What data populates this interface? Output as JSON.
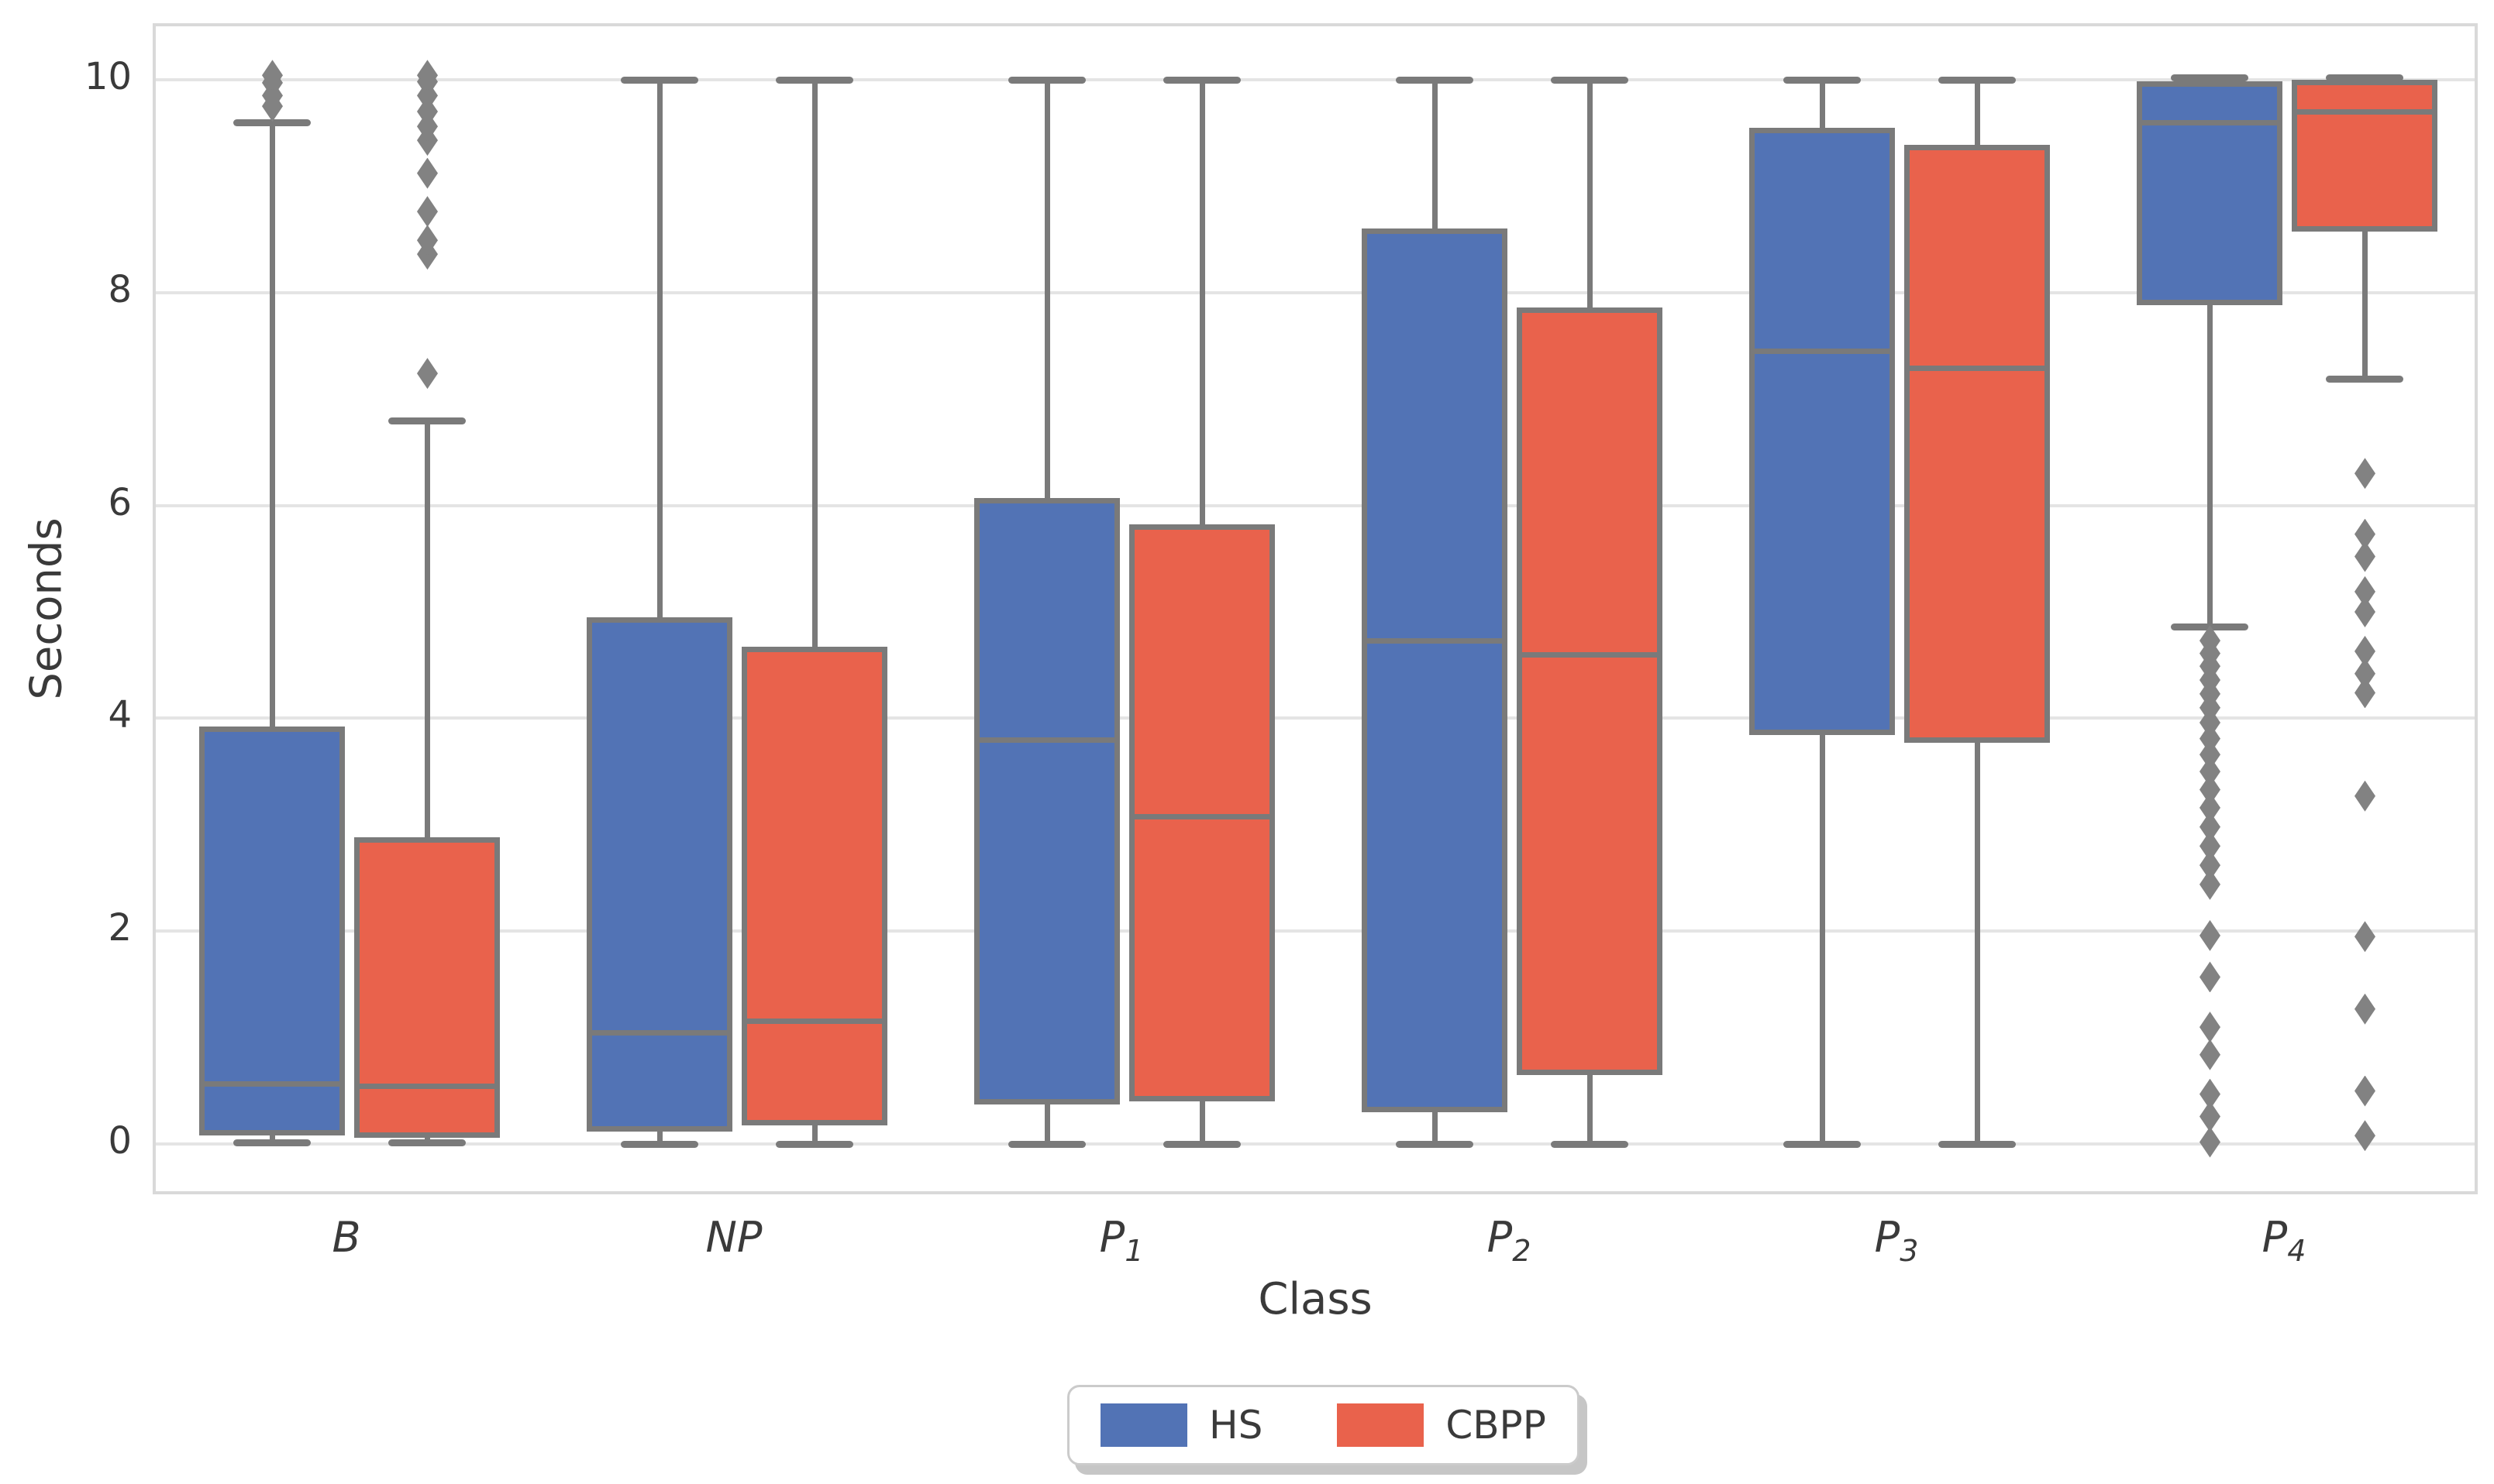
{
  "chart_data": {
    "type": "boxplot",
    "title": "",
    "xlabel": "Class",
    "ylabel": "Seconds",
    "categories": [
      {
        "base": "B",
        "sub": ""
      },
      {
        "base": "NP",
        "sub": ""
      },
      {
        "base": "P",
        "sub": "1"
      },
      {
        "base": "P",
        "sub": "2"
      },
      {
        "base": "P",
        "sub": "3"
      },
      {
        "base": "P",
        "sub": "4"
      }
    ],
    "yticks": [
      0,
      2,
      4,
      6,
      8,
      10
    ],
    "ylim": [
      -0.5,
      10.5
    ],
    "grid": true,
    "legend_position": "bottom-center",
    "palette": {
      "hs_fill": "#5273b5",
      "cbpp_fill": "#e9624c",
      "box_edge": "#7a7a7a",
      "outlier": "#828282",
      "gridline": "#e4e4e4",
      "spine": "#d9d9d9",
      "tick_label": "#3a3a3a"
    },
    "series": [
      {
        "name": "HS",
        "color": "#5273b5",
        "boxes": [
          {
            "category": "B",
            "whislo": 0.02,
            "q1": 0.08,
            "med": 0.57,
            "q3": 3.92,
            "whishi": 9.6,
            "outliers": [
              9.75,
              9.85,
              9.97,
              10.04
            ]
          },
          {
            "category": "NP",
            "whislo": 0.0,
            "q1": 0.12,
            "med": 1.05,
            "q3": 4.95,
            "whishi": 10.0,
            "outliers": []
          },
          {
            "category": "P1",
            "whislo": 0.0,
            "q1": 0.37,
            "med": 3.8,
            "q3": 6.07,
            "whishi": 10.0,
            "outliers": []
          },
          {
            "category": "P2",
            "whislo": 0.0,
            "q1": 0.3,
            "med": 4.73,
            "q3": 8.6,
            "whishi": 10.0,
            "outliers": []
          },
          {
            "category": "P3",
            "whislo": 0.0,
            "q1": 3.84,
            "med": 7.45,
            "q3": 9.55,
            "whishi": 10.0,
            "outliers": []
          },
          {
            "category": "P4",
            "whislo": 4.86,
            "q1": 7.88,
            "med": 9.6,
            "q3": 9.98,
            "whishi": 10.02,
            "outliers": [
              4.73,
              4.61,
              4.49,
              4.36,
              4.23,
              4.1,
              3.96,
              3.81,
              3.66,
              3.5,
              3.33,
              3.16,
              2.98,
              2.8,
              2.62,
              2.44,
              1.96,
              1.57,
              1.1,
              0.84,
              0.47,
              0.26,
              0.02
            ]
          }
        ]
      },
      {
        "name": "CBPP",
        "color": "#e9624c",
        "boxes": [
          {
            "category": "B",
            "whislo": 0.02,
            "q1": 0.06,
            "med": 0.55,
            "q3": 2.88,
            "whishi": 6.8,
            "outliers": [
              7.24,
              8.36,
              8.49,
              8.76,
              9.12,
              9.43,
              9.56,
              9.7,
              9.85,
              9.98,
              10.04
            ]
          },
          {
            "category": "NP",
            "whislo": 0.0,
            "q1": 0.18,
            "med": 1.16,
            "q3": 4.67,
            "whishi": 10.0,
            "outliers": []
          },
          {
            "category": "P1",
            "whislo": 0.0,
            "q1": 0.4,
            "med": 3.08,
            "q3": 5.82,
            "whishi": 10.0,
            "outliers": []
          },
          {
            "category": "P2",
            "whislo": 0.0,
            "q1": 0.65,
            "med": 4.6,
            "q3": 7.86,
            "whishi": 10.0,
            "outliers": []
          },
          {
            "category": "P3",
            "whislo": 0.0,
            "q1": 3.77,
            "med": 7.29,
            "q3": 9.39,
            "whishi": 10.0,
            "outliers": []
          },
          {
            "category": "P4",
            "whislo": 7.19,
            "q1": 8.57,
            "med": 9.7,
            "q3": 10.0,
            "whishi": 10.02,
            "outliers": [
              6.3,
              5.73,
              5.52,
              5.19,
              5.0,
              4.63,
              4.42,
              4.24,
              3.27,
              1.95,
              1.27,
              0.5,
              0.08
            ]
          }
        ]
      }
    ],
    "legend": {
      "entries": [
        "HS",
        "CBPP"
      ]
    }
  }
}
